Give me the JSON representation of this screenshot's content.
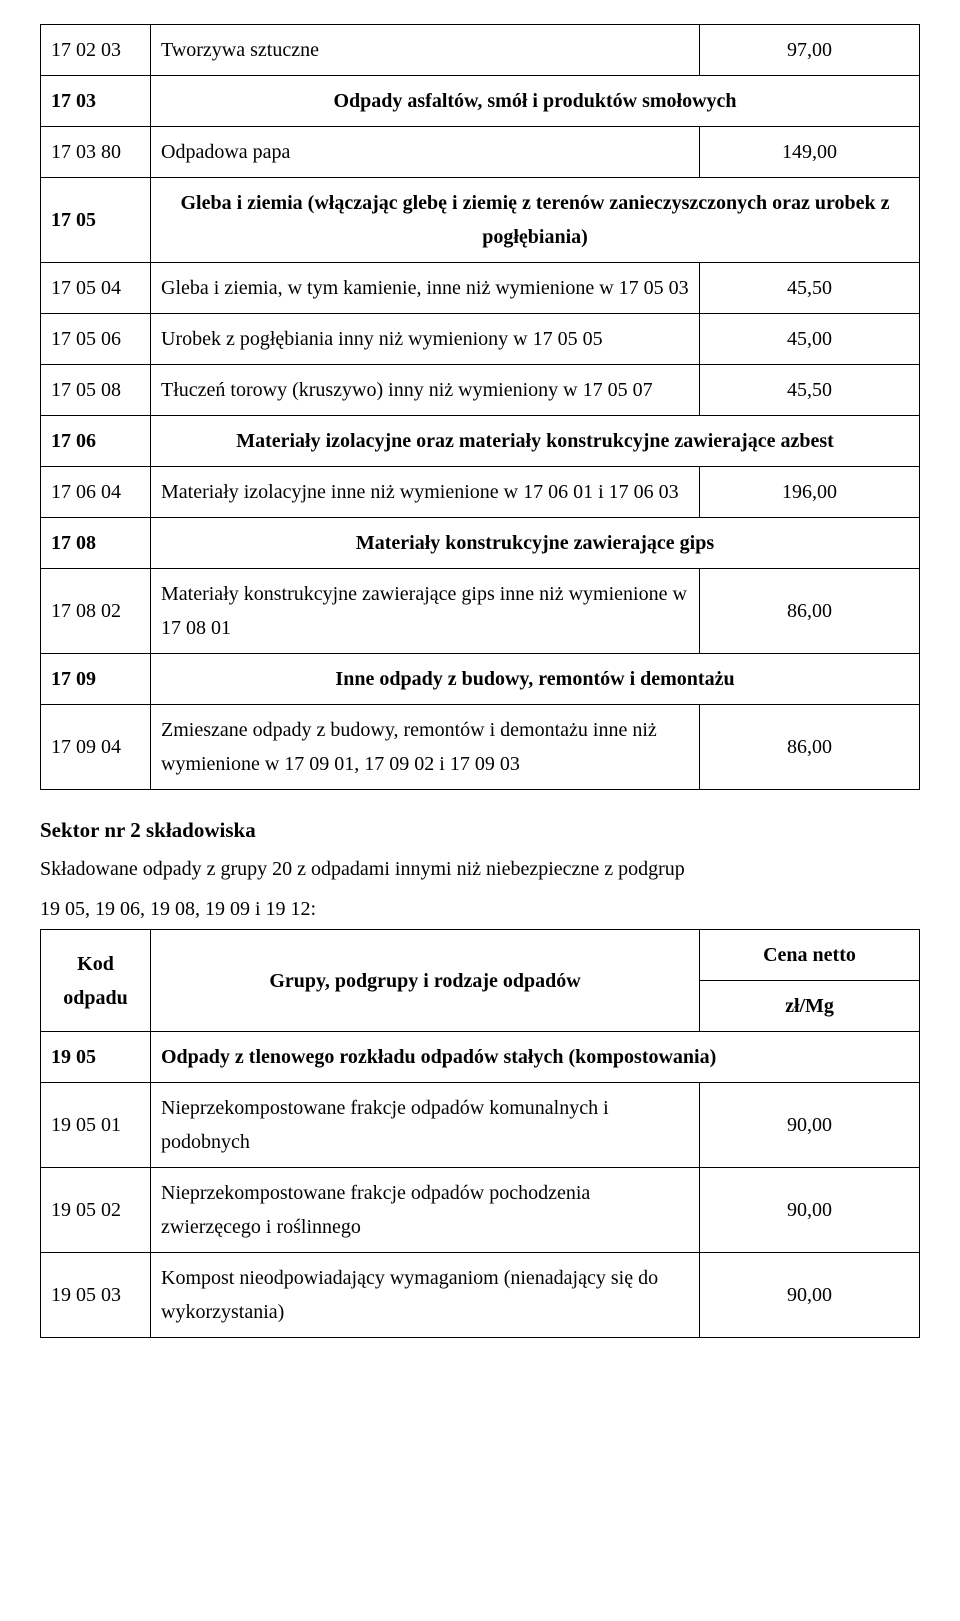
{
  "table1": {
    "rows": [
      {
        "code": "17 02 03",
        "desc": "Tworzywa sztuczne",
        "value": "97,00",
        "type": "data"
      },
      {
        "code": "17 03",
        "desc": "Odpady asfaltów, smół i produktów smołowych",
        "type": "group"
      },
      {
        "code": "17 03 80",
        "desc": "Odpadowa papa",
        "value": "149,00",
        "type": "data"
      },
      {
        "code": "17 05",
        "desc": "Gleba i ziemia (włączając glebę i ziemię z terenów zanieczyszczonych oraz urobek z pogłębiania)",
        "type": "group"
      },
      {
        "code": "17 05 04",
        "desc": "Gleba i ziemia, w tym kamienie, inne niż wymienione w 17 05 03",
        "value": "45,50",
        "type": "data"
      },
      {
        "code": "17 05 06",
        "desc": "Urobek z pogłębiania inny niż wymieniony w 17 05 05",
        "value": "45,00",
        "type": "data"
      },
      {
        "code": "17 05 08",
        "desc": "Tłuczeń torowy (kruszywo) inny niż wymieniony w 17 05 07",
        "value": "45,50",
        "type": "data"
      },
      {
        "code": "17 06",
        "desc": "Materiały izolacyjne oraz materiały konstrukcyjne zawierające azbest",
        "type": "group"
      },
      {
        "code": "17 06 04",
        "desc": "Materiały izolacyjne inne niż wymienione w 17 06 01 i 17 06 03",
        "value": "196,00",
        "type": "data"
      },
      {
        "code": "17 08",
        "desc": "Materiały konstrukcyjne zawierające gips",
        "type": "group"
      },
      {
        "code": "17 08 02",
        "desc": "Materiały konstrukcyjne zawierające gips inne niż wymienione w 17 08 01",
        "value": "86,00",
        "type": "data"
      },
      {
        "code": "17 09",
        "desc": "Inne odpady z budowy, remontów i demontażu",
        "type": "group"
      },
      {
        "code": "17 09 04",
        "desc": "Zmieszane odpady z budowy, remontów i demontażu inne niż wymienione w 17 09 01, 17 09 02 i 17 09 03",
        "value": "86,00",
        "type": "data"
      }
    ]
  },
  "section": {
    "title": "Sektor nr 2 składowiska",
    "line1": "Składowane odpady z grupy 20 z odpadami innymi niż niebezpieczne z podgrup",
    "line2": "19 05, 19 06, 19 08, 19 09 i 19 12:"
  },
  "table2": {
    "head": {
      "c1a": "Kod",
      "c1b": "odpadu",
      "c2": "Grupy, podgrupy i rodzaje odpadów",
      "c3a": "Cena netto",
      "c3b": "zł/Mg"
    },
    "rows": [
      {
        "code": "19 05",
        "desc": "Odpady z tlenowego rozkładu odpadów stałych (kompostowania)",
        "type": "group"
      },
      {
        "code": "19 05 01",
        "desc": "Nieprzekompostowane frakcje odpadów komunalnych i podobnych",
        "value": "90,00",
        "type": "data"
      },
      {
        "code": "19 05 02",
        "desc": "Nieprzekompostowane frakcje odpadów pochodzenia zwierzęcego i roślinnego",
        "value": "90,00",
        "type": "data"
      },
      {
        "code": "19 05 03",
        "desc": "Kompost nieodpowiadający wymaganiom (nienadający się do wykorzystania)",
        "value": "90,00",
        "type": "data"
      }
    ]
  }
}
